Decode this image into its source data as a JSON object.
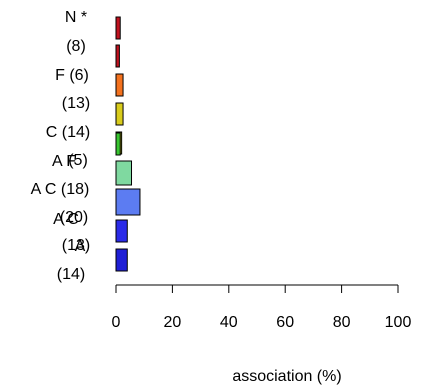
{
  "chart_data": {
    "type": "bar",
    "orientation": "horizontal",
    "xlabel": "association (%)",
    "xlim": [
      0,
      100
    ],
    "xticks": [
      "0",
      "20",
      "40",
      "60",
      "80",
      "100"
    ],
    "grid": false,
    "categories": [
      {
        "label": "N *",
        "value": 1.5,
        "color": "#c1121f"
      },
      {
        "label": "(8)",
        "value": 1.2,
        "color": "#c1121f"
      },
      {
        "label": "F (6)",
        "value": 2.5,
        "color": "#f4721e"
      },
      {
        "label": "(13)",
        "value": 2.5,
        "color": "#d9cc1c"
      },
      {
        "label": "C (14)",
        "value": 2.0,
        "color": "#c8d31a"
      },
      {
        "label": "(5)",
        "value": 1.5,
        "color": "#39c630"
      },
      {
        "label": "A F",
        "value": 5.5,
        "color": "#7fd9a0"
      },
      {
        "label": "A C (18)",
        "value": 8.5,
        "color": "#5c7cf2"
      },
      {
        "label": "(20)",
        "value": 4.0,
        "color": "#2b2be8"
      },
      {
        "label": "A C",
        "value": 4.0,
        "color": "#1f1fd6"
      }
    ],
    "extra_labels": [
      "(13)",
      "A",
      "(14)"
    ]
  }
}
